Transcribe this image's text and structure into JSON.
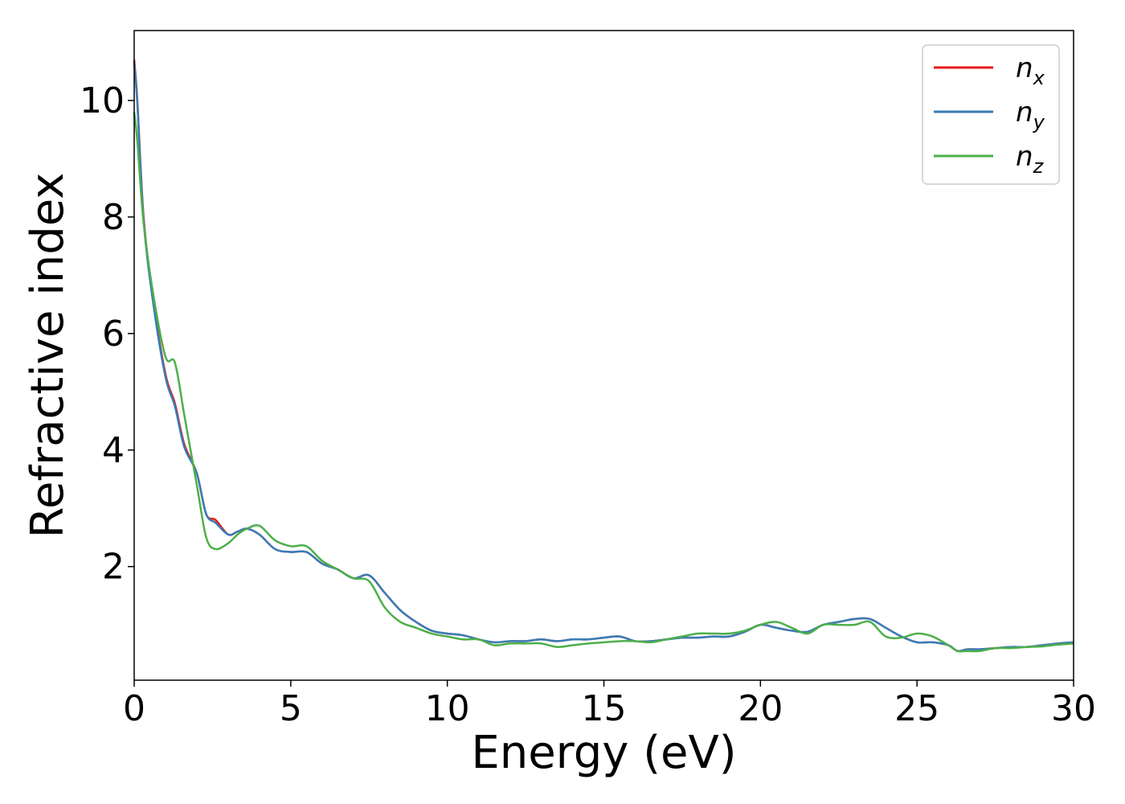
{
  "chart_data": {
    "type": "line",
    "title": "",
    "xlabel": "Energy (eV)",
    "ylabel": "Refractive index",
    "xlim": [
      0,
      30
    ],
    "ylim": [
      0.05,
      11.2
    ],
    "xticks": [
      0,
      5,
      10,
      15,
      20,
      25,
      30
    ],
    "yticks": [
      2,
      4,
      6,
      8,
      10
    ],
    "grid": false,
    "legend_position": "top-right",
    "series": [
      {
        "name": "n_x",
        "label_main": "n",
        "label_sub": "x",
        "color": "#e41a1c",
        "x": [
          0,
          0.1,
          0.3,
          0.6,
          1.0,
          1.3,
          1.6,
          2.0,
          2.3,
          2.6,
          3.0,
          3.3,
          3.6,
          4.0,
          4.5,
          5.0,
          5.5,
          6.0,
          6.5,
          7.0,
          7.5,
          8.0,
          8.5,
          9.0,
          9.5,
          10.0,
          10.5,
          11.0,
          11.5,
          12.0,
          12.5,
          13.0,
          13.5,
          14.0,
          14.5,
          15.0,
          15.5,
          16.0,
          16.5,
          17.0,
          17.5,
          18.0,
          18.5,
          19.0,
          19.5,
          20.0,
          20.5,
          21.0,
          21.5,
          22.0,
          22.5,
          23.0,
          23.5,
          24.0,
          24.5,
          25.0,
          25.5,
          26.0,
          26.3,
          26.6,
          27.0,
          27.5,
          28.0,
          28.5,
          29.0,
          29.5,
          30.0
        ],
        "y": [
          10.7,
          10.0,
          8.0,
          6.6,
          5.3,
          4.8,
          4.1,
          3.6,
          2.9,
          2.8,
          2.55,
          2.6,
          2.65,
          2.55,
          2.3,
          2.25,
          2.25,
          2.05,
          1.95,
          1.8,
          1.85,
          1.55,
          1.25,
          1.05,
          0.9,
          0.85,
          0.82,
          0.75,
          0.7,
          0.72,
          0.72,
          0.75,
          0.72,
          0.75,
          0.75,
          0.78,
          0.8,
          0.72,
          0.72,
          0.75,
          0.78,
          0.78,
          0.8,
          0.8,
          0.88,
          1.0,
          0.95,
          0.9,
          0.88,
          1.0,
          1.05,
          1.1,
          1.1,
          0.95,
          0.8,
          0.7,
          0.7,
          0.65,
          0.55,
          0.58,
          0.58,
          0.6,
          0.62,
          0.62,
          0.65,
          0.68,
          0.7
        ]
      },
      {
        "name": "n_y",
        "label_main": "n",
        "label_sub": "y",
        "color": "#377eb8",
        "x": [
          0,
          0.1,
          0.3,
          0.6,
          1.0,
          1.3,
          1.6,
          2.0,
          2.3,
          2.6,
          3.0,
          3.3,
          3.6,
          4.0,
          4.5,
          5.0,
          5.5,
          6.0,
          6.5,
          7.0,
          7.5,
          8.0,
          8.5,
          9.0,
          9.5,
          10.0,
          10.5,
          11.0,
          11.5,
          12.0,
          12.5,
          13.0,
          13.5,
          14.0,
          14.5,
          15.0,
          15.5,
          16.0,
          16.5,
          17.0,
          17.5,
          18.0,
          18.5,
          19.0,
          19.5,
          20.0,
          20.5,
          21.0,
          21.5,
          22.0,
          22.5,
          23.0,
          23.5,
          24.0,
          24.5,
          25.0,
          25.5,
          26.0,
          26.3,
          26.6,
          27.0,
          27.5,
          28.0,
          28.5,
          29.0,
          29.5,
          30.0
        ],
        "y": [
          10.65,
          9.95,
          7.95,
          6.55,
          5.25,
          4.75,
          4.05,
          3.6,
          2.9,
          2.75,
          2.55,
          2.6,
          2.65,
          2.55,
          2.3,
          2.25,
          2.25,
          2.05,
          1.95,
          1.8,
          1.85,
          1.55,
          1.25,
          1.05,
          0.9,
          0.85,
          0.82,
          0.75,
          0.7,
          0.72,
          0.72,
          0.75,
          0.72,
          0.75,
          0.75,
          0.78,
          0.8,
          0.72,
          0.72,
          0.75,
          0.78,
          0.78,
          0.8,
          0.8,
          0.88,
          1.0,
          0.95,
          0.9,
          0.88,
          1.0,
          1.05,
          1.1,
          1.1,
          0.95,
          0.8,
          0.7,
          0.7,
          0.65,
          0.55,
          0.58,
          0.58,
          0.6,
          0.62,
          0.62,
          0.65,
          0.68,
          0.7
        ]
      },
      {
        "name": "n_z",
        "label_main": "n",
        "label_sub": "z",
        "color": "#4daf4a",
        "x": [
          0,
          0.1,
          0.3,
          0.6,
          1.0,
          1.3,
          1.6,
          2.0,
          2.3,
          2.6,
          3.0,
          3.3,
          3.6,
          4.0,
          4.5,
          5.0,
          5.5,
          6.0,
          6.5,
          7.0,
          7.5,
          8.0,
          8.5,
          9.0,
          9.5,
          10.0,
          10.5,
          11.0,
          11.5,
          12.0,
          12.5,
          13.0,
          13.5,
          14.0,
          14.5,
          15.0,
          15.5,
          16.0,
          16.5,
          17.0,
          17.5,
          18.0,
          18.5,
          19.0,
          19.5,
          20.0,
          20.5,
          21.0,
          21.5,
          22.0,
          22.5,
          23.0,
          23.5,
          24.0,
          24.5,
          25.0,
          25.5,
          26.0,
          26.3,
          26.6,
          27.0,
          27.5,
          28.0,
          28.5,
          29.0,
          29.5,
          30.0
        ],
        "y": [
          9.8,
          9.3,
          7.9,
          6.7,
          5.6,
          5.5,
          4.6,
          3.4,
          2.5,
          2.3,
          2.4,
          2.55,
          2.65,
          2.7,
          2.45,
          2.35,
          2.35,
          2.1,
          1.95,
          1.8,
          1.75,
          1.3,
          1.05,
          0.95,
          0.85,
          0.8,
          0.75,
          0.75,
          0.65,
          0.68,
          0.68,
          0.68,
          0.62,
          0.65,
          0.68,
          0.7,
          0.72,
          0.72,
          0.7,
          0.75,
          0.8,
          0.85,
          0.85,
          0.85,
          0.9,
          1.0,
          1.05,
          0.95,
          0.85,
          1.0,
          1.0,
          1.0,
          1.05,
          0.8,
          0.78,
          0.85,
          0.8,
          0.65,
          0.55,
          0.55,
          0.55,
          0.6,
          0.6,
          0.62,
          0.63,
          0.66,
          0.68
        ]
      }
    ]
  }
}
